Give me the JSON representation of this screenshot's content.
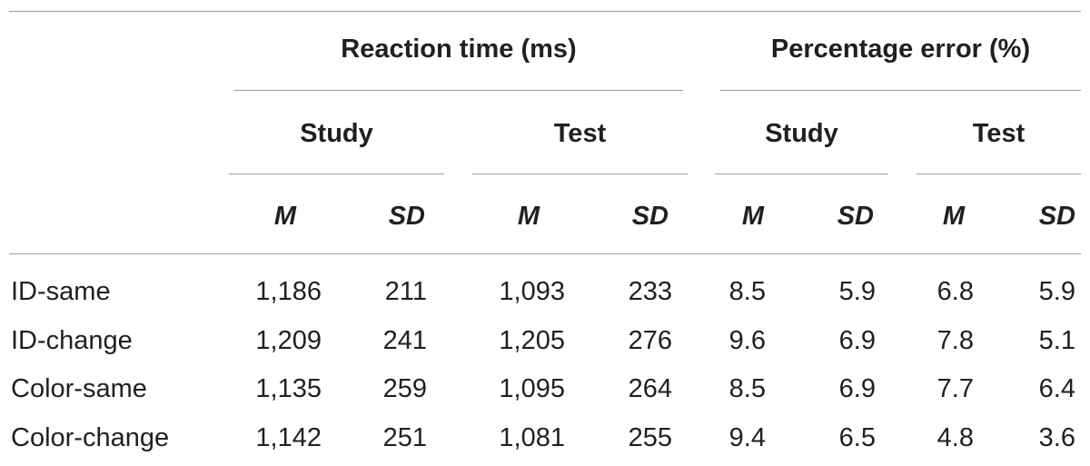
{
  "table": {
    "groups": [
      "Reaction time (ms)",
      "Percentage error (%)"
    ],
    "subgroups": [
      "Study",
      "Test",
      "Study",
      "Test"
    ],
    "stats": [
      "M",
      "SD",
      "M",
      "SD",
      "M",
      "SD",
      "M",
      "SD"
    ],
    "rows": [
      {
        "label": "ID-same",
        "values": [
          "1,186",
          "211",
          "1,093",
          "233",
          "8.5",
          "5.9",
          "6.8",
          "5.9"
        ]
      },
      {
        "label": "ID-change",
        "values": [
          "1,209",
          "241",
          "1,205",
          "276",
          "9.6",
          "6.9",
          "7.8",
          "5.1"
        ]
      },
      {
        "label": "Color-same",
        "values": [
          "1,135",
          "259",
          "1,095",
          "264",
          "8.5",
          "6.9",
          "7.7",
          "6.4"
        ]
      },
      {
        "label": "Color-change",
        "values": [
          "1,142",
          "251",
          "1,081",
          "255",
          "9.4",
          "6.5",
          "4.8",
          "3.6"
        ]
      }
    ]
  }
}
